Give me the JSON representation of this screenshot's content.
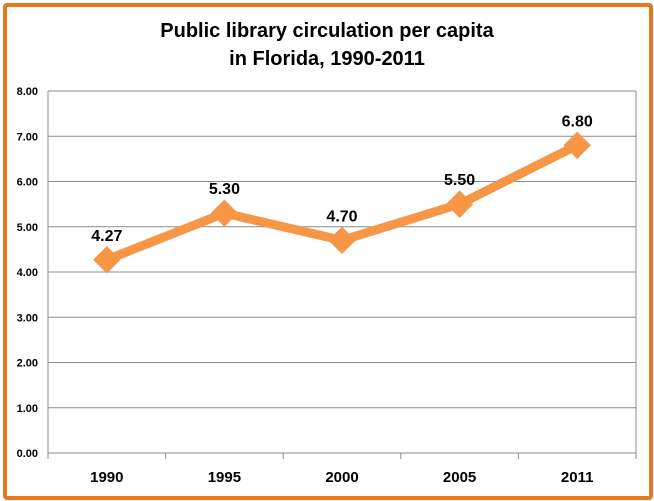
{
  "chart_data": {
    "type": "line",
    "title_line1": "Public library circulation per capita",
    "title_line2": "in Florida, 1990-2011",
    "categories": [
      "1990",
      "1995",
      "2000",
      "2005",
      "2011"
    ],
    "values": [
      4.27,
      5.3,
      4.7,
      5.5,
      6.8
    ],
    "data_labels": [
      "4.27",
      "5.30",
      "4.70",
      "5.50",
      "6.80"
    ],
    "y_ticks": [
      "0.00",
      "1.00",
      "2.00",
      "3.00",
      "4.00",
      "5.00",
      "6.00",
      "7.00",
      "8.00"
    ],
    "ylim": [
      0,
      8
    ],
    "xlabel": "",
    "ylabel": "",
    "grid": true,
    "legend": "none",
    "series_color": "#f79646",
    "frame_color": "#e8781e"
  }
}
